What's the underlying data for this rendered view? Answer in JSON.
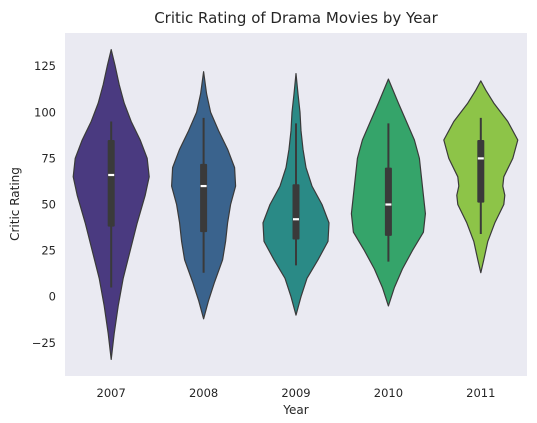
{
  "chart_data": {
    "type": "violin",
    "title": "Critic Rating of Drama Movies by Year",
    "xlabel": "Year",
    "ylabel": "Critic Rating",
    "ylim": [
      -43,
      143
    ],
    "yticks": [
      "125",
      "100",
      "75",
      "50",
      "25",
      "0",
      "−25"
    ],
    "ytick_values": [
      125,
      100,
      75,
      50,
      25,
      0,
      -25
    ],
    "grid": false,
    "palette": "viridis",
    "categories": [
      "2007",
      "2008",
      "2009",
      "2010",
      "2011"
    ],
    "violins": [
      {
        "year": "2007",
        "color": "#4a3a80",
        "min": 5,
        "q1": 38,
        "median": 66,
        "q3": 85,
        "max": 95,
        "kde_extent": [
          -34,
          134
        ],
        "density": [
          [
            -34,
            0
          ],
          [
            -20,
            3
          ],
          [
            -5,
            7
          ],
          [
            10,
            12
          ],
          [
            25,
            19
          ],
          [
            40,
            26
          ],
          [
            55,
            34
          ],
          [
            65,
            38
          ],
          [
            75,
            36
          ],
          [
            85,
            29
          ],
          [
            95,
            20
          ],
          [
            105,
            13
          ],
          [
            115,
            8
          ],
          [
            125,
            4
          ],
          [
            134,
            0
          ]
        ]
      },
      {
        "year": "2008",
        "color": "#3a638d",
        "min": 13,
        "q1": 35,
        "median": 60,
        "q3": 72,
        "max": 97,
        "kde_extent": [
          -12,
          122
        ],
        "density": [
          [
            -12,
            0
          ],
          [
            -2,
            5
          ],
          [
            8,
            11
          ],
          [
            20,
            19
          ],
          [
            30,
            22
          ],
          [
            40,
            24
          ],
          [
            50,
            27
          ],
          [
            60,
            32
          ],
          [
            70,
            31
          ],
          [
            80,
            24
          ],
          [
            90,
            15
          ],
          [
            100,
            7
          ],
          [
            110,
            3
          ],
          [
            122,
            0
          ]
        ]
      },
      {
        "year": "2009",
        "color": "#2a8a86",
        "min": 17,
        "q1": 31,
        "median": 42,
        "q3": 61,
        "max": 94,
        "kde_extent": [
          -10,
          121
        ],
        "density": [
          [
            -10,
            0
          ],
          [
            0,
            5
          ],
          [
            10,
            11
          ],
          [
            20,
            22
          ],
          [
            30,
            32
          ],
          [
            40,
            33
          ],
          [
            50,
            26
          ],
          [
            60,
            16
          ],
          [
            70,
            10
          ],
          [
            80,
            7
          ],
          [
            90,
            5
          ],
          [
            100,
            4
          ],
          [
            110,
            2
          ],
          [
            121,
            0
          ]
        ]
      },
      {
        "year": "2010",
        "color": "#35a46a",
        "min": 19,
        "q1": 33,
        "median": 50,
        "q3": 70,
        "max": 94,
        "kde_extent": [
          -5,
          118
        ],
        "density": [
          [
            -5,
            0
          ],
          [
            5,
            6
          ],
          [
            15,
            14
          ],
          [
            25,
            24
          ],
          [
            35,
            35
          ],
          [
            45,
            37
          ],
          [
            55,
            35
          ],
          [
            65,
            33
          ],
          [
            75,
            31
          ],
          [
            85,
            26
          ],
          [
            95,
            18
          ],
          [
            105,
            10
          ],
          [
            118,
            0
          ]
        ]
      },
      {
        "year": "2011",
        "color": "#8dc448",
        "min": 34,
        "q1": 51,
        "median": 75,
        "q3": 85,
        "max": 97,
        "kde_extent": [
          13,
          117
        ],
        "density": [
          [
            13,
            0
          ],
          [
            20,
            3
          ],
          [
            30,
            7
          ],
          [
            40,
            14
          ],
          [
            50,
            23
          ],
          [
            55,
            24
          ],
          [
            60,
            22
          ],
          [
            65,
            23
          ],
          [
            75,
            32
          ],
          [
            85,
            37
          ],
          [
            95,
            27
          ],
          [
            105,
            13
          ],
          [
            112,
            5
          ],
          [
            117,
            0
          ]
        ]
      }
    ]
  }
}
